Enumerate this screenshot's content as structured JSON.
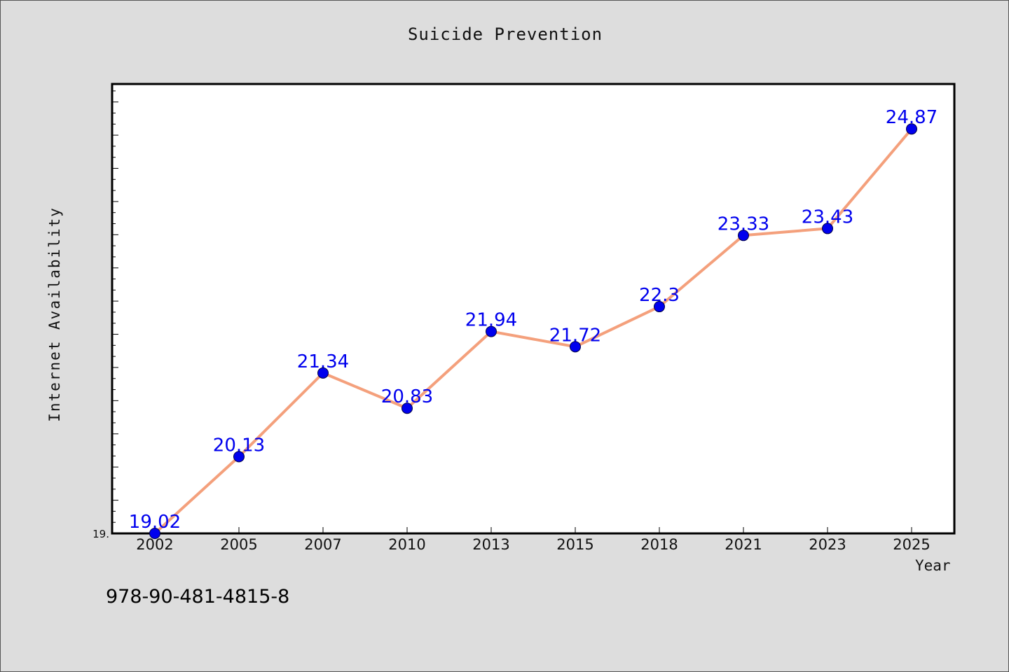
{
  "chart_data": {
    "type": "line",
    "title": "Suicide Prevention",
    "xlabel": "Year",
    "ylabel": "Internet Availability",
    "categories": [
      "2002",
      "2005",
      "2007",
      "2010",
      "2013",
      "2015",
      "2018",
      "2021",
      "2023",
      "2025"
    ],
    "series": [
      {
        "values": [
          19.02,
          20.13,
          21.34,
          20.83,
          21.94,
          21.72,
          22.3,
          23.33,
          23.43,
          24.87
        ]
      }
    ],
    "data_labels": [
      "19.02",
      "20.13",
      "21.34",
      "20.83",
      "21.94",
      "21.72",
      "22.3",
      "23.33",
      "23.43",
      "24.87"
    ],
    "ylim": [
      19.02,
      25.52
    ],
    "yticks_labeled": [
      {
        "value": 19.02,
        "label": "19."
      }
    ],
    "grid": false,
    "colors": {
      "line": "#f4a07c",
      "marker": "#0000ee",
      "data_label": "#0000ee",
      "background": "#dddddd",
      "plot_background": "#ffffff"
    }
  },
  "footer": {
    "isbn": "978-90-481-4815-8"
  }
}
